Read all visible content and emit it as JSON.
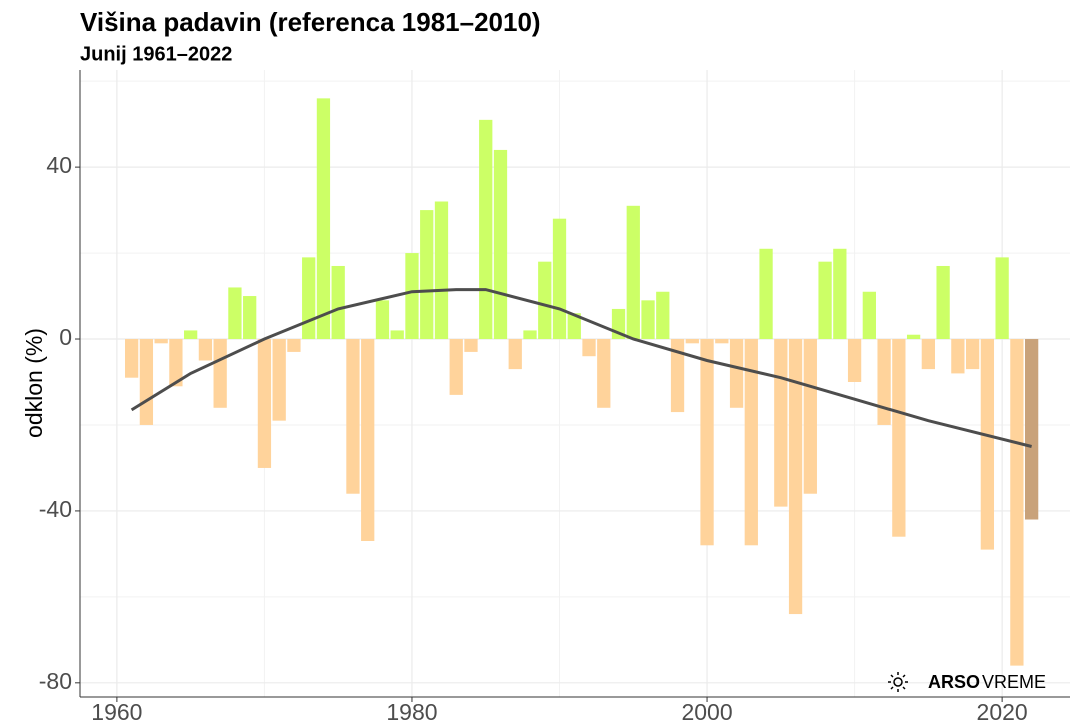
{
  "chart_data": {
    "type": "bar",
    "title": "Višina padavin (referenca 1981–2010)",
    "subtitle": "Junij 1961–2022",
    "y_label": "odklon (%)",
    "x": [
      1961,
      1962,
      1963,
      1964,
      1965,
      1966,
      1967,
      1968,
      1969,
      1970,
      1971,
      1972,
      1973,
      1974,
      1975,
      1976,
      1977,
      1978,
      1979,
      1980,
      1981,
      1982,
      1983,
      1984,
      1985,
      1986,
      1987,
      1988,
      1989,
      1990,
      1991,
      1992,
      1993,
      1994,
      1995,
      1996,
      1997,
      1998,
      1999,
      2000,
      2001,
      2002,
      2003,
      2004,
      2005,
      2006,
      2007,
      2008,
      2009,
      2010,
      2011,
      2012,
      2013,
      2014,
      2015,
      2016,
      2017,
      2018,
      2019,
      2020,
      2021,
      2022
    ],
    "values": [
      -9,
      -20,
      -1,
      -11,
      2,
      -5,
      -16,
      12,
      10,
      -30,
      -19,
      -3,
      19,
      56,
      17,
      -36,
      -47,
      9,
      2,
      20,
      30,
      32,
      -13,
      -3,
      51,
      44,
      -7,
      2,
      18,
      28,
      6,
      -4,
      -16,
      7,
      31,
      9,
      11,
      -17,
      -1,
      -48,
      -1,
      -16,
      -48,
      21,
      -39,
      -64,
      -36,
      18,
      21,
      -10,
      11,
      -20,
      -46,
      1,
      -7,
      17,
      -8,
      -7,
      -49,
      19,
      -76,
      -42
    ],
    "positive_color": "#ccff66",
    "negative_color": "#ffd39b",
    "last_color": "#c9a27a",
    "trend": {
      "x": [
        1961,
        1965,
        1970,
        1975,
        1980,
        1983,
        1985,
        1990,
        1995,
        2000,
        2005,
        2010,
        2015,
        2022
      ],
      "values": [
        -16.5,
        -8,
        0,
        7,
        11,
        11.5,
        11.5,
        7,
        0,
        -5,
        -9,
        -14,
        -19,
        -25
      ],
      "color": "#4d4d4d"
    },
    "xlim": [
      1957.5,
      2024.6
    ],
    "ylim": [
      -83.3,
      62.6
    ],
    "xticks": [
      1960,
      1980,
      2000,
      2020
    ],
    "yticks": [
      -80,
      -40,
      0,
      40
    ],
    "minor_xticks": [
      1970,
      1990,
      2010
    ],
    "minor_yticks": [
      -60,
      -20,
      20,
      60
    ],
    "grid": true,
    "watermark": [
      "ARSO",
      "VREME"
    ]
  }
}
